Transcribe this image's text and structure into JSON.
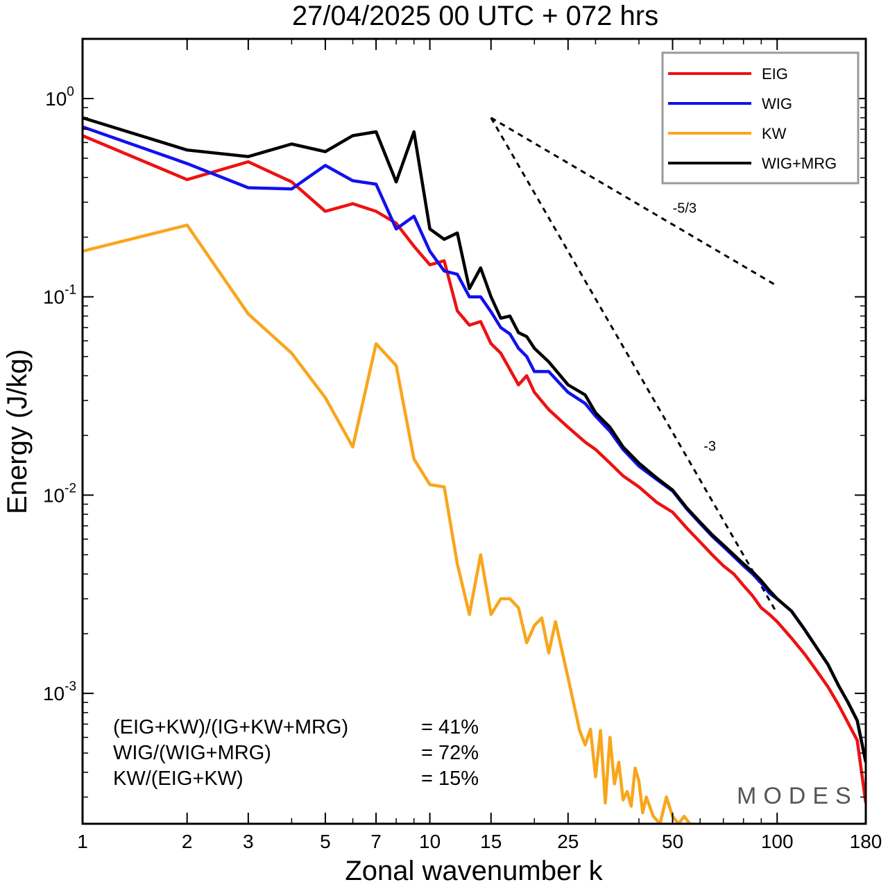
{
  "chart_data": {
    "type": "line",
    "title": "27/04/2025  00 UTC  + 072 hrs",
    "xlabel": "Zonal wavenumber k",
    "ylabel": "Energy (J/kg)",
    "xscale": "log",
    "yscale": "log",
    "xlim": [
      1,
      180
    ],
    "ylim": [
      0.00022,
      2.0
    ],
    "x_ticks": [
      1,
      2,
      3,
      5,
      7,
      10,
      15,
      25,
      50,
      100,
      180
    ],
    "x_tick_labels": [
      "1",
      "2",
      "3",
      "5",
      "7",
      "10",
      "15",
      "25",
      "50",
      "100",
      "180"
    ],
    "y_ticks": [
      {
        "value": 1,
        "base": "10",
        "exp": "0"
      },
      {
        "value": 0.1,
        "base": "10",
        "exp": "-1"
      },
      {
        "value": 0.01,
        "base": "10",
        "exp": "-2"
      },
      {
        "value": 0.001,
        "base": "10",
        "exp": "-3"
      }
    ],
    "grid": false,
    "legend_position": "top-right",
    "series": [
      {
        "name": "EIG",
        "color": "#ee1111",
        "x": [
          1,
          2,
          3,
          4,
          5,
          6,
          7,
          8,
          9,
          10,
          11,
          12,
          13,
          14,
          15,
          16,
          17,
          18,
          19,
          20,
          22,
          25,
          28,
          30,
          33,
          36,
          40,
          45,
          50,
          55,
          60,
          65,
          70,
          75,
          80,
          85,
          90,
          95,
          100,
          110,
          120,
          130,
          140,
          150,
          160,
          170,
          180
        ],
        "y": [
          0.65,
          0.39,
          0.48,
          0.38,
          0.27,
          0.295,
          0.27,
          0.235,
          0.18,
          0.145,
          0.152,
          0.085,
          0.072,
          0.075,
          0.058,
          0.052,
          0.043,
          0.036,
          0.04,
          0.033,
          0.027,
          0.022,
          0.0185,
          0.017,
          0.0145,
          0.0125,
          0.011,
          0.0092,
          0.0082,
          0.0068,
          0.0058,
          0.005,
          0.0044,
          0.004,
          0.0035,
          0.0031,
          0.0027,
          0.0025,
          0.0023,
          0.0019,
          0.00158,
          0.0013,
          0.00108,
          0.00088,
          0.00071,
          0.00058,
          0.00028
        ]
      },
      {
        "name": "WIG",
        "color": "#1111ee",
        "x": [
          1,
          2,
          3,
          4,
          5,
          6,
          7,
          8,
          9,
          10,
          11,
          12,
          13,
          14,
          15,
          16,
          17,
          18,
          19,
          20,
          22,
          25,
          28,
          30,
          33,
          36,
          40,
          45,
          50,
          55,
          60,
          65,
          70,
          75,
          80,
          85,
          90,
          95,
          100,
          110,
          120,
          130,
          140,
          150,
          160,
          170,
          180
        ],
        "y": [
          0.72,
          0.47,
          0.355,
          0.35,
          0.46,
          0.385,
          0.37,
          0.22,
          0.255,
          0.17,
          0.135,
          0.13,
          0.1,
          0.1,
          0.084,
          0.07,
          0.065,
          0.055,
          0.05,
          0.042,
          0.042,
          0.033,
          0.029,
          0.025,
          0.021,
          0.017,
          0.014,
          0.012,
          0.0105,
          0.0085,
          0.0072,
          0.0062,
          0.0055,
          0.0049,
          0.0044,
          0.004,
          0.0036,
          0.0032,
          0.003,
          0.0026,
          0.0021,
          0.0017,
          0.0014,
          0.0011,
          0.0009,
          0.00073,
          0.00045
        ]
      },
      {
        "name": "KW",
        "color": "#f9a61c",
        "x": [
          1,
          2,
          3,
          4,
          5,
          6,
          7,
          8,
          9,
          10,
          11,
          12,
          13,
          14,
          15,
          16,
          17,
          18,
          19,
          20,
          21,
          22,
          23,
          25,
          27,
          28,
          29,
          30,
          31,
          32,
          33,
          34,
          35,
          36,
          37,
          38,
          39,
          40,
          41,
          42,
          44,
          46,
          48,
          50,
          52,
          54,
          56
        ],
        "y": [
          0.17,
          0.23,
          0.082,
          0.052,
          0.031,
          0.0175,
          0.058,
          0.045,
          0.0152,
          0.0113,
          0.011,
          0.0045,
          0.0025,
          0.005,
          0.0025,
          0.003,
          0.003,
          0.0027,
          0.0018,
          0.0022,
          0.0024,
          0.0016,
          0.0023,
          0.0012,
          0.00065,
          0.00055,
          0.00066,
          0.00038,
          0.00065,
          0.00028,
          0.0006,
          0.00035,
          0.00045,
          0.00029,
          0.00032,
          0.00027,
          0.00042,
          0.00036,
          0.00025,
          0.0003,
          0.00024,
          0.00022,
          0.0003,
          0.00024,
          0.00022,
          0.00024,
          0.00022
        ]
      },
      {
        "name": "WIG+MRG",
        "color": "#000000",
        "x": [
          1,
          2,
          3,
          4,
          5,
          6,
          7,
          8,
          9,
          10,
          11,
          12,
          13,
          14,
          15,
          16,
          17,
          18,
          19,
          20,
          22,
          25,
          28,
          30,
          33,
          36,
          40,
          45,
          50,
          55,
          60,
          65,
          70,
          75,
          80,
          85,
          90,
          95,
          100,
          110,
          120,
          130,
          140,
          150,
          160,
          170,
          180
        ],
        "y": [
          0.8,
          0.55,
          0.51,
          0.59,
          0.54,
          0.65,
          0.68,
          0.38,
          0.68,
          0.22,
          0.195,
          0.21,
          0.11,
          0.14,
          0.1,
          0.078,
          0.08,
          0.066,
          0.063,
          0.055,
          0.047,
          0.036,
          0.032,
          0.026,
          0.022,
          0.0175,
          0.0145,
          0.0122,
          0.0106,
          0.0086,
          0.0073,
          0.0063,
          0.0056,
          0.005,
          0.0045,
          0.0041,
          0.0037,
          0.0033,
          0.003,
          0.0026,
          0.0021,
          0.0017,
          0.0014,
          0.0011,
          0.0009,
          0.00073,
          0.00045
        ]
      }
    ],
    "reference_lines": [
      {
        "label": "-5/3",
        "x": [
          15,
          100
        ],
        "y": [
          0.8,
          0.1135
        ]
      },
      {
        "label": "-3",
        "x": [
          15,
          100
        ],
        "y": [
          0.8,
          0.00253
        ]
      }
    ],
    "annotations": [
      {
        "label": "(EIG+KW)/(IG+KW+MRG)",
        "value": "= 41%"
      },
      {
        "label": "WIG/(WIG+MRG)",
        "value": "= 72%"
      },
      {
        "label": "KW/(EIG+KW)",
        "value": "= 15%"
      }
    ]
  },
  "watermark": "MODES"
}
